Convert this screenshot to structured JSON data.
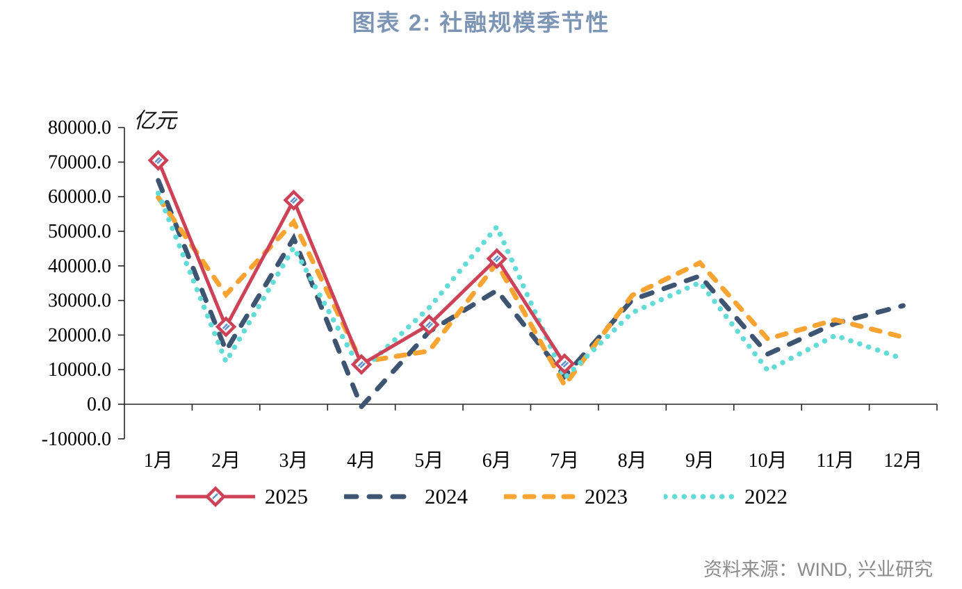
{
  "page": {
    "title": "图表 2: 社融规模季节性",
    "source": "资料来源：WIND, 兴业研究"
  },
  "chart_data": {
    "type": "line",
    "title": "图表 2: 社融规模季节性",
    "unit_label": "亿元",
    "categories": [
      "1月",
      "2月",
      "3月",
      "4月",
      "5月",
      "6月",
      "7月",
      "8月",
      "9月",
      "10月",
      "11月",
      "12月"
    ],
    "series": [
      {
        "name": "2025",
        "color": "#ce4257",
        "style": "solid-diamond",
        "values": [
          70500,
          22400,
          59000,
          11500,
          23000,
          42100,
          11700,
          null,
          null,
          null,
          null,
          null
        ]
      },
      {
        "name": "2024",
        "color": "#3e5572",
        "style": "dashed",
        "values": [
          64700,
          15500,
          48000,
          -700,
          21000,
          32900,
          8100,
          30200,
          37100,
          14500,
          23400,
          28500
        ]
      },
      {
        "name": "2023",
        "color": "#f7a433",
        "style": "dashed",
        "values": [
          59800,
          31700,
          52700,
          12200,
          15400,
          40800,
          5500,
          31500,
          40900,
          18900,
          24400,
          19400
        ]
      },
      {
        "name": "2022",
        "color": "#63dbd6",
        "style": "dotted",
        "values": [
          61000,
          12300,
          45300,
          9600,
          27900,
          51300,
          7600,
          26500,
          35200,
          9800,
          19900,
          13100
        ]
      }
    ],
    "ylim": [
      -10000,
      80000
    ],
    "ytick_step": 10000,
    "ytick_labels": [
      "80000.0",
      "70000.0",
      "60000.0",
      "50000.0",
      "40000.0",
      "30000.0",
      "20000.0",
      "10000.0",
      "0.0",
      "-10000.0"
    ],
    "grid": false,
    "legend_position": "bottom",
    "marker_inner_stripe_color": "#5b8fd4",
    "axis_color": "#262626",
    "source": "资料来源：WIND, 兴业研究"
  }
}
